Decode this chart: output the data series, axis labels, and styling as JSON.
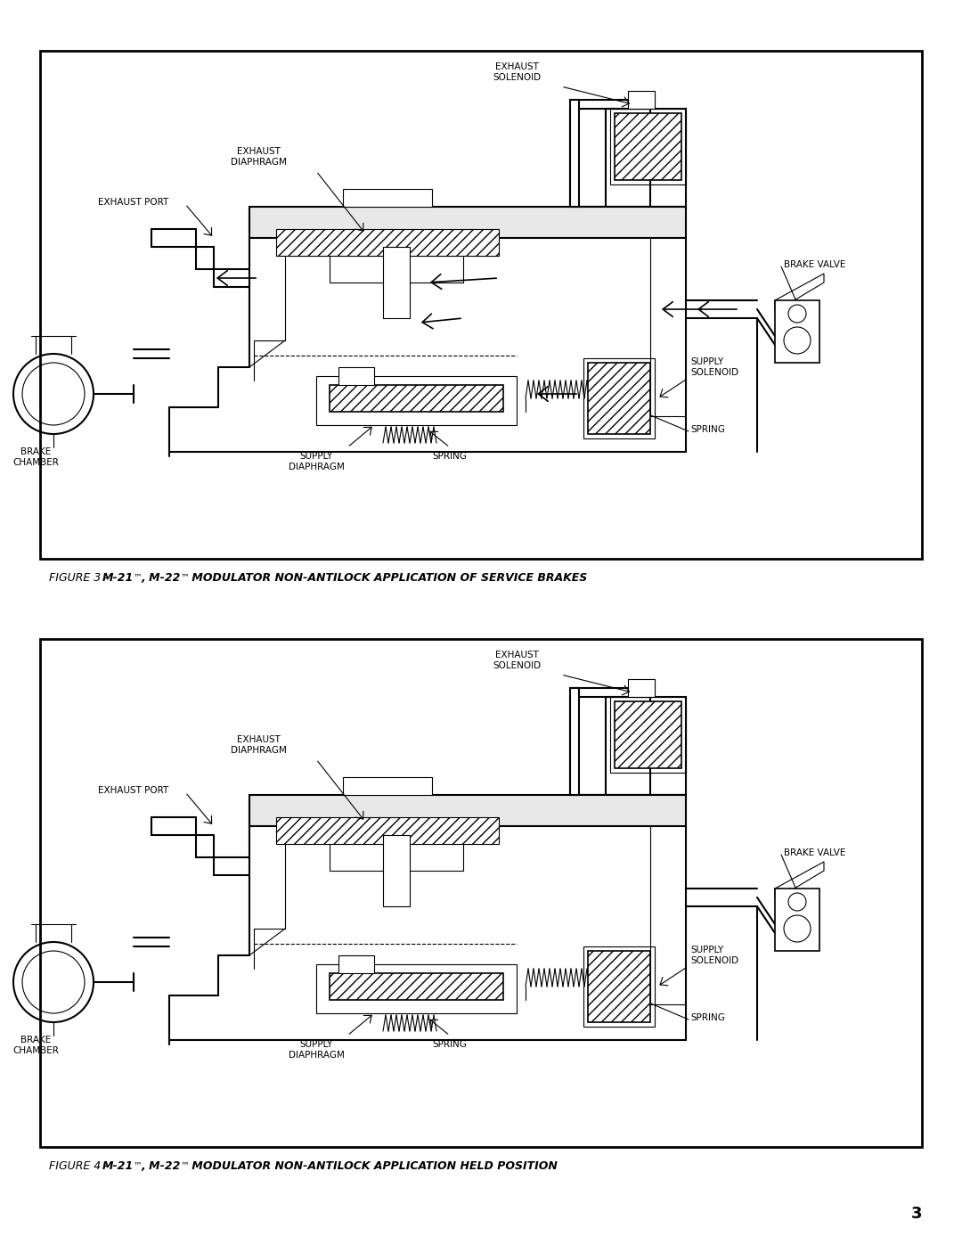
{
  "page_bg": "#ffffff",
  "border_color": "#000000",
  "text_color": "#000000",
  "fig1_caption_plain": "FIGURE 3 - ",
  "fig1_caption_bold1": "M-21",
  "fig1_caption_tm1": "™",
  "fig1_caption_bold2": ", M-22",
  "fig1_caption_tm2": "™",
  "fig1_caption_rest": " MODULATOR NON-ANTILOCK APPLICATION OF SERVICE BRAKES",
  "fig2_caption_plain": "FIGURE 4 - ",
  "fig2_caption_bold1": "M-21",
  "fig2_caption_tm1": "™",
  "fig2_caption_bold2": ", M-22",
  "fig2_caption_tm2": "™",
  "fig2_caption_rest": " MODULATOR NON-ANTILOCK APPLICATION HELD POSITION",
  "page_number": "3",
  "label_fontsize": 7.5,
  "caption_fontsize": 9.0
}
